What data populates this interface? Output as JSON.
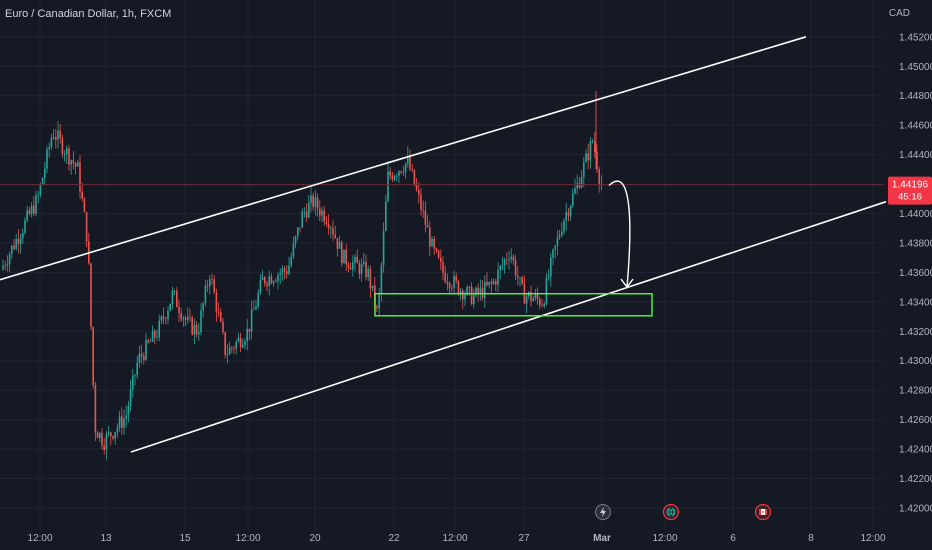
{
  "header": {
    "title": "Euro / Canadian Dollar, 1h, FXCM",
    "currency": "CAD"
  },
  "price_badge": {
    "price": "1.44196",
    "countdown": "45:16",
    "color": "#f23645"
  },
  "colors": {
    "background": "#151924",
    "bull": "#26a69a",
    "bear": "#ef5350",
    "grid": "#1f2433",
    "trend_line": "#ffffff",
    "zone": "#4cff3a",
    "price_line": "#6b2a33"
  },
  "event_icons": [
    {
      "name": "lightning-icon",
      "at": "Mar"
    },
    {
      "name": "globe-icon",
      "at": "12:00"
    },
    {
      "name": "flag-icon",
      "at": "8"
    }
  ],
  "chart_data": {
    "type": "candlestick",
    "title": "Euro / Canadian Dollar, 1h, FXCM",
    "y_unit": "CAD",
    "ylim": [
      1.4185,
      1.4545
    ],
    "y_ticks": [
      "1.45200",
      "1.45000",
      "1.44800",
      "1.44600",
      "1.44400",
      "1.44000",
      "1.43800",
      "1.43600",
      "1.43400",
      "1.43200",
      "1.43000",
      "1.42800",
      "1.42600",
      "1.42400",
      "1.42200",
      "1.42000"
    ],
    "x_ticks": [
      "12:00",
      "13",
      "15",
      "12:00",
      "20",
      "22",
      "12:00",
      "27",
      "Mar",
      "12:00",
      "6",
      "8",
      "12:00"
    ],
    "current_price": 1.44196,
    "grid": true,
    "price_path": [
      {
        "x": "start",
        "close": 1.4362
      },
      {
        "x": "12:00",
        "close": 1.441
      },
      {
        "x": "before 13",
        "close": 1.4455
      },
      {
        "x": "drop",
        "close": 1.425
      },
      {
        "x": "13",
        "close": 1.4245
      },
      {
        "x": "15",
        "close": 1.4345
      },
      {
        "x": "12:00",
        "close": 1.433
      },
      {
        "x": "20",
        "close": 1.4408
      },
      {
        "x": "22",
        "close": 1.443
      },
      {
        "x": "12:00",
        "close": 1.435
      },
      {
        "x": "27",
        "close": 1.4345
      },
      {
        "x": "Mar",
        "close": 1.442
      }
    ],
    "annotations": [
      {
        "type": "channel-upper-line",
        "from": 1.4355,
        "to": 1.452
      },
      {
        "type": "channel-lower-line",
        "from": 1.4238,
        "to": 1.4408
      },
      {
        "type": "support-zone",
        "y_top": 1.43455,
        "y_bottom": 1.43305
      },
      {
        "type": "curved-arrow",
        "from": 1.4419,
        "to": 1.435
      }
    ]
  }
}
